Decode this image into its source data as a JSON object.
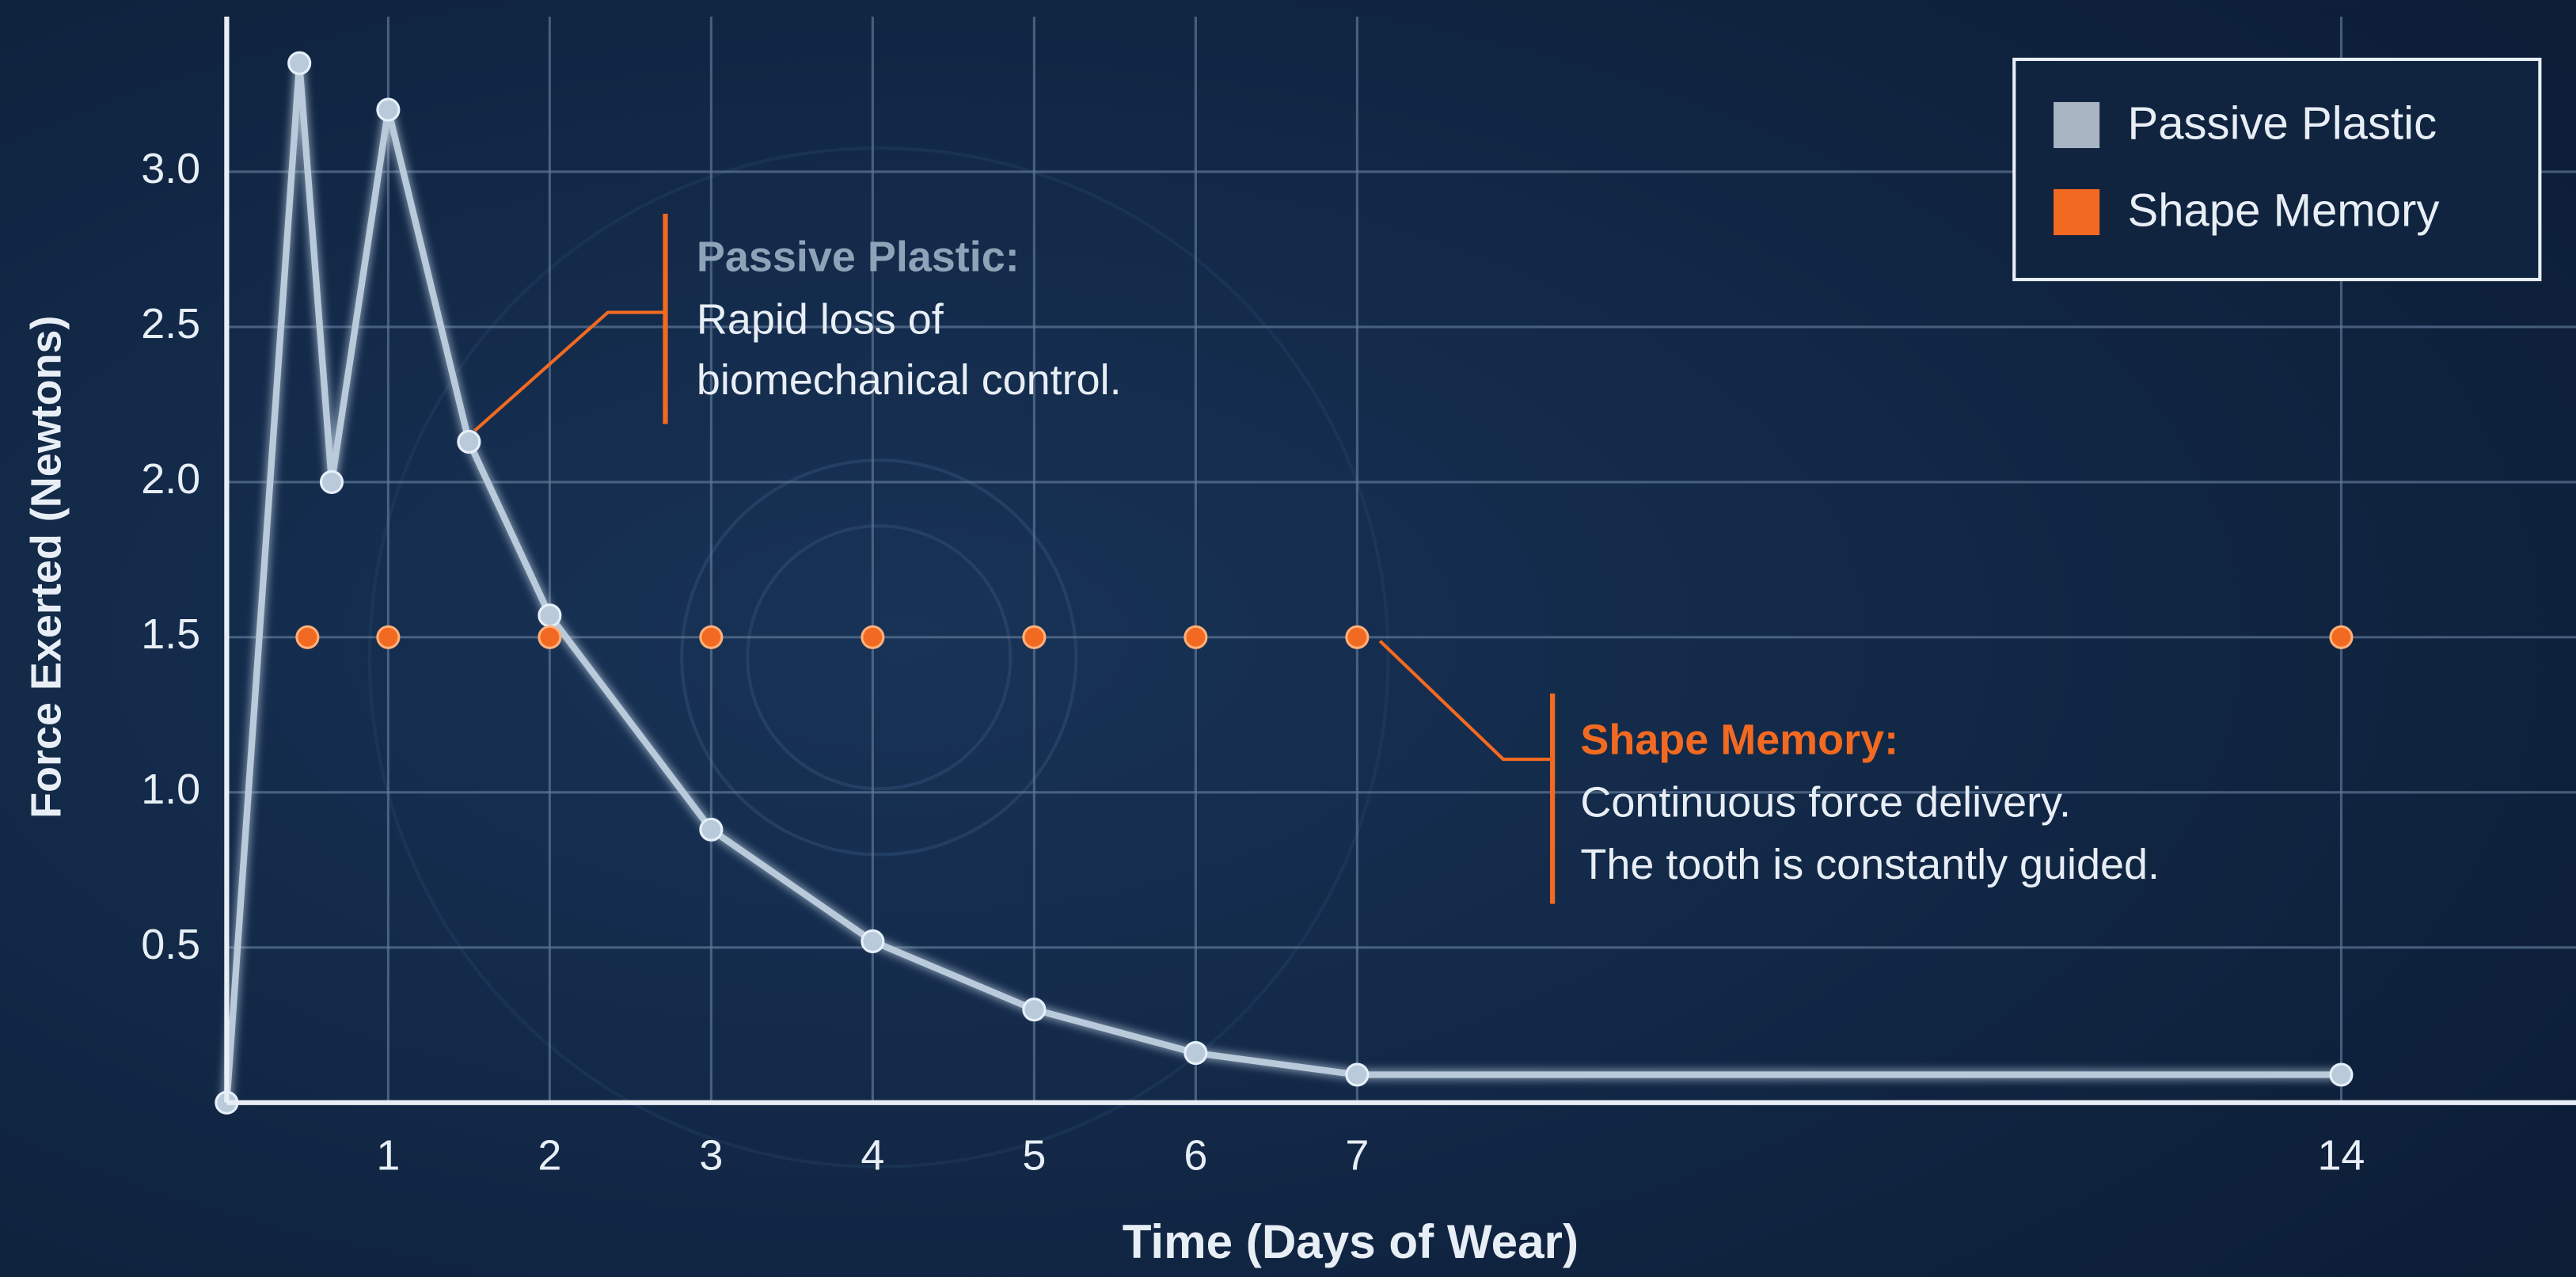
{
  "chart_data": {
    "type": "line",
    "x_label": "Time (Days of Wear)",
    "y_label": "Force Exerted (Newtons)",
    "series": [
      {
        "name": "Passive Plastic",
        "color": "#b9cadb",
        "x": [
          0,
          0.45,
          0.65,
          1,
          1.5,
          2,
          3,
          4,
          5,
          6,
          7,
          14
        ],
        "values": [
          0,
          3.35,
          2.0,
          3.2,
          2.13,
          1.57,
          0.88,
          0.52,
          0.3,
          0.16,
          0.09,
          0.09
        ]
      },
      {
        "name": "Shape Memory",
        "color": "#f26a21",
        "x": [
          0.5,
          1,
          2,
          3,
          4,
          5,
          6,
          7,
          14
        ],
        "values": [
          1.5,
          1.5,
          1.5,
          1.5,
          1.5,
          1.5,
          1.5,
          1.5,
          1.5
        ]
      }
    ],
    "xlim": [
      0,
      15.5
    ],
    "xticks": [
      1,
      2,
      3,
      4,
      5,
      6,
      7,
      14
    ],
    "ylim": [
      0,
      3.5
    ],
    "yticks": [
      0.5,
      {
        "value": 1,
        "label": "1.0"
      },
      1.5,
      {
        "value": 2,
        "label": "2.0"
      },
      2.5,
      {
        "value": 3,
        "label": "3.0"
      }
    ],
    "grid": true,
    "legend": "upper right",
    "annotations": [
      {
        "title": "Passive Plastic:",
        "lines": [
          "Rapid loss of",
          "biomechanical control."
        ]
      },
      {
        "title": "Shape Memory:",
        "lines": [
          "Continuous force delivery.",
          "The tooth is constantly guided."
        ]
      }
    ]
  }
}
